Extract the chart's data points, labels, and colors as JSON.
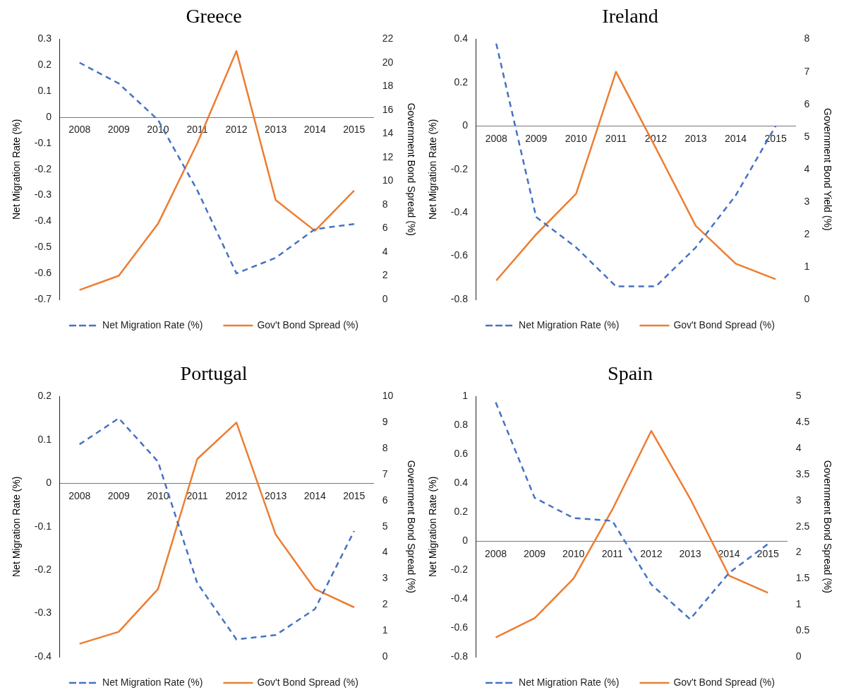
{
  "chart_data": [
    {
      "type": "line",
      "title": "Greece",
      "categories": [
        "2008",
        "2009",
        "2010",
        "2011",
        "2012",
        "2013",
        "2014",
        "2015"
      ],
      "ylabel": "Net Migration Rate (%)",
      "y2label": "Government Bond Spread (%)",
      "ylim": [
        -0.7,
        0.3
      ],
      "yticks": [
        -0.7,
        -0.6,
        -0.5,
        -0.4,
        -0.3,
        -0.2,
        -0.1,
        0,
        0.1,
        0.2,
        0.3
      ],
      "y2lim": [
        0,
        22
      ],
      "y2ticks": [
        0,
        2,
        4,
        6,
        8,
        10,
        12,
        14,
        16,
        18,
        20,
        22
      ],
      "legend": "bottom",
      "grid": false,
      "marker": "none",
      "series": [
        {
          "name": "Net Migration Rate (%)",
          "color": "#4472c4",
          "line_style": "dashed",
          "values": [
            0.21,
            0.13,
            -0.01,
            -0.28,
            -0.6,
            -0.54,
            -0.43,
            -0.41
          ]
        },
        {
          "name": "Gov't Bond Spread (%)",
          "color": "#ed7d31",
          "line_style": "solid",
          "axis": "y2",
          "values": [
            0.8,
            2.0,
            6.4,
            13.2,
            21.0,
            8.4,
            5.8,
            9.2
          ]
        }
      ]
    },
    {
      "type": "line",
      "title": "Ireland",
      "categories": [
        "2008",
        "2009",
        "2010",
        "2011",
        "2012",
        "2013",
        "2014",
        "2015"
      ],
      "ylabel": "Net Migration Rate (%)",
      "y2label": "Government Bond Yield (%)",
      "ylim": [
        -0.8,
        0.4
      ],
      "yticks": [
        -0.8,
        -0.6,
        -0.4,
        -0.2,
        0,
        0.2,
        0.4
      ],
      "y2lim": [
        0,
        8
      ],
      "y2ticks": [
        0,
        1,
        2,
        3,
        4,
        5,
        6,
        7,
        8
      ],
      "legend": "bottom",
      "grid": false,
      "marker": "none",
      "series": [
        {
          "name": "Net Migration Rate (%)",
          "color": "#4472c4",
          "line_style": "dashed",
          "values": [
            0.38,
            -0.42,
            -0.56,
            -0.74,
            -0.74,
            -0.56,
            -0.32,
            0.0
          ]
        },
        {
          "name": "Gov't Bond Spread (%)",
          "color": "#ed7d31",
          "line_style": "solid",
          "axis": "y2",
          "values": [
            0.58,
            2.0,
            3.25,
            7.0,
            4.65,
            2.26,
            1.1,
            0.62
          ]
        }
      ]
    },
    {
      "type": "line",
      "title": "Portugal",
      "categories": [
        "2008",
        "2009",
        "2010",
        "2011",
        "2012",
        "2013",
        "2014",
        "2015"
      ],
      "ylabel": "Net Migration Rate (%)",
      "y2label": "Government Bond Spread (%)",
      "ylim": [
        -0.4,
        0.2
      ],
      "yticks": [
        -0.4,
        -0.3,
        -0.2,
        -0.1,
        0,
        0.1,
        0.2
      ],
      "y2lim": [
        0,
        10
      ],
      "y2ticks": [
        0,
        1,
        2,
        3,
        4,
        5,
        6,
        7,
        8,
        9,
        10
      ],
      "legend": "bottom",
      "grid": false,
      "marker": "none",
      "series": [
        {
          "name": "Net Migration Rate (%)",
          "color": "#4472c4",
          "line_style": "dashed",
          "values": [
            0.09,
            0.15,
            0.05,
            -0.23,
            -0.36,
            -0.35,
            -0.29,
            -0.11
          ]
        },
        {
          "name": "Gov't Bond Spread (%)",
          "color": "#ed7d31",
          "line_style": "solid",
          "axis": "y2",
          "values": [
            0.5,
            0.96,
            2.6,
            7.6,
            9.0,
            4.7,
            2.6,
            1.9
          ]
        }
      ]
    },
    {
      "type": "line",
      "title": "Spain",
      "categories": [
        "2008",
        "2009",
        "2010",
        "2011",
        "2012",
        "2013",
        "2014",
        "2015"
      ],
      "ylabel": "Net Migration Rate (%)",
      "y2label": "Government Bond Spread (%)",
      "ylim": [
        -0.8,
        1
      ],
      "yticks": [
        -0.8,
        -0.6,
        -0.4,
        -0.2,
        0,
        0.2,
        0.4,
        0.6,
        0.8,
        1
      ],
      "y2lim": [
        0,
        5
      ],
      "y2ticks": [
        0,
        0.5,
        1,
        1.5,
        2,
        2.5,
        3,
        3.5,
        4,
        4.5,
        5
      ],
      "legend": "bottom",
      "grid": false,
      "marker": "none",
      "series": [
        {
          "name": "Net Migration Rate (%)",
          "color": "#4472c4",
          "line_style": "dashed",
          "values": [
            0.96,
            0.3,
            0.16,
            0.14,
            -0.3,
            -0.54,
            -0.22,
            -0.02
          ]
        },
        {
          "name": "Gov't Bond Spread (%)",
          "color": "#ed7d31",
          "line_style": "solid",
          "axis": "y2",
          "values": [
            0.37,
            0.74,
            1.5,
            2.83,
            4.34,
            3.04,
            1.56,
            1.23
          ]
        }
      ]
    }
  ]
}
